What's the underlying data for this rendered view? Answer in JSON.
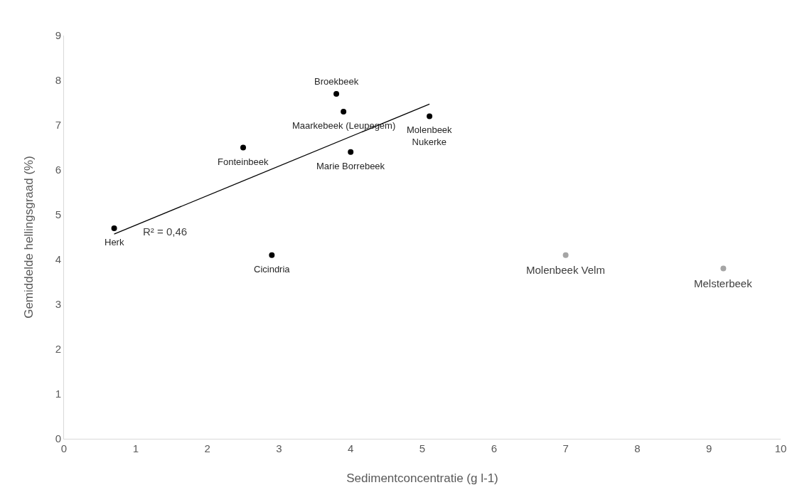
{
  "chart_data": {
    "type": "scatter",
    "xlabel": "Sedimentconcentratie (g l-1)",
    "ylabel": "Gemiddelde hellingsgraad (%)",
    "xlim": [
      0,
      10
    ],
    "xticks": [
      0,
      1,
      2,
      3,
      4,
      5,
      6,
      7,
      8,
      9,
      10
    ],
    "ylim": [
      0,
      9
    ],
    "yticks": [
      0,
      1,
      2,
      3,
      4,
      5,
      6,
      7,
      8,
      9
    ],
    "grid": false,
    "marker": "circle",
    "series": [
      {
        "color": "#000000",
        "x": [
          0.7,
          2.5,
          2.9,
          3.8,
          3.9,
          4.0,
          5.1
        ],
        "values": [
          4.7,
          6.5,
          4.1,
          7.7,
          7.3,
          6.4,
          7.2
        ]
      },
      {
        "color": "#a5a5a5",
        "x": [
          7.0,
          9.2
        ],
        "values": [
          4.1,
          3.8
        ]
      },
      {
        "type": "line",
        "marker": "none",
        "color": "#000000",
        "x": [
          0.7,
          5.1
        ],
        "values": [
          4.57,
          7.47
        ]
      }
    ],
    "annotations": [
      {
        "text": "Herk",
        "x": 0.7,
        "y": 4.7
      },
      {
        "text": "Fonteinbeek",
        "x": 2.5,
        "y": 6.5
      },
      {
        "text": "Cicindria",
        "x": 2.9,
        "y": 4.1
      },
      {
        "text": "Broekbeek",
        "x": 3.8,
        "y": 7.7
      },
      {
        "text": "Maarkebeek (Leupegem)",
        "x": 3.9,
        "y": 7.3
      },
      {
        "text": "Marie Borrebeek",
        "x": 4.0,
        "y": 6.4
      },
      {
        "text": "Molenbeek\nNukerke",
        "x": 5.1,
        "y": 7.2
      },
      {
        "text": "Molenbeek Velm",
        "x": 7.0,
        "y": 4.1
      },
      {
        "text": "Melsterbeek",
        "x": 9.2,
        "y": 3.8
      },
      "R² = 0,46"
    ]
  }
}
